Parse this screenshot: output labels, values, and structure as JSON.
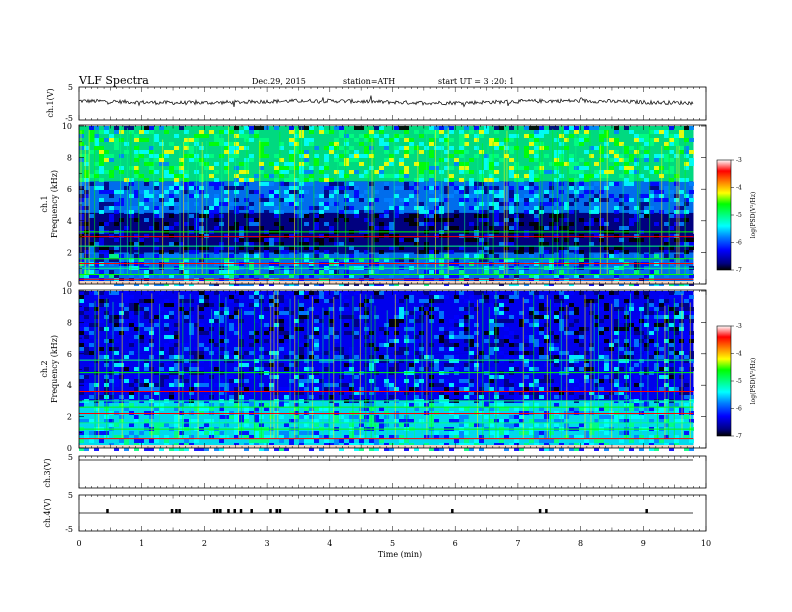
{
  "header": {
    "title": "VLF  Spectra",
    "date": "Dec.29, 2015",
    "station": "station=ATH",
    "start": "start  UT  =   3  :20: 1"
  },
  "colors": {
    "bg": "#ffffff",
    "axis": "#000000",
    "colormap": [
      "#000000",
      "#00007f",
      "#0000ff",
      "#0080ff",
      "#00ffff",
      "#00ff80",
      "#00ff00",
      "#ffff00",
      "#ff8000",
      "#ff0000",
      "#ffffff"
    ]
  },
  "chart_data": [
    {
      "type": "line",
      "panel": "ch1-waveform",
      "ylabel": "ch.1(V)",
      "ylim": [
        -5,
        5
      ],
      "yticks": [
        "5",
        "-5"
      ],
      "xlim": [
        0,
        10
      ],
      "baseline_level": 0.5,
      "trace": "noisy waveform near +0.5 V with periodic spikes, continuous across 0-9.8 min"
    },
    {
      "type": "heatmap",
      "panel": "ch1-spectrogram",
      "ylabel": "Frequency (kHz)",
      "channel_label": "ch.1",
      "ylim": [
        0,
        10
      ],
      "yticks": [
        "0",
        "2",
        "4",
        "6",
        "8",
        "10"
      ],
      "xlim": [
        0,
        9.8
      ],
      "colorbar": {
        "label": "log(PSD(V²/Hz)",
        "range": [
          -7,
          -3
        ],
        "ticks": [
          "-3",
          "-4",
          "-5",
          "-6",
          "-7"
        ]
      },
      "bands": [
        {
          "from": 0,
          "to": 2,
          "level": -5.8
        },
        {
          "from": 2,
          "to": 4.5,
          "level": -6.6
        },
        {
          "from": 4.5,
          "to": 6.5,
          "level": -6.0
        },
        {
          "from": 6.5,
          "to": 10,
          "level": -4.9
        }
      ],
      "lines_khz": [
        0.3,
        0.6,
        1.0,
        1.3,
        1.6,
        2.4,
        3.0,
        3.3
      ]
    },
    {
      "type": "heatmap",
      "panel": "ch2-spectrogram",
      "ylabel": "Frequency (kHz)",
      "channel_label": "ch.2",
      "ylim": [
        0,
        10
      ],
      "yticks": [
        "0",
        "2",
        "4",
        "6",
        "8",
        "10"
      ],
      "xlim": [
        0,
        9.8
      ],
      "colorbar": {
        "label": "log(PSD(V²/Hz)",
        "range": [
          -7,
          -3
        ],
        "ticks": [
          "-3",
          "-4",
          "-5",
          "-6",
          "-7"
        ]
      },
      "bands": [
        {
          "from": 0,
          "to": 3,
          "level": -5.6
        },
        {
          "from": 3,
          "to": 6,
          "level": -6.1
        },
        {
          "from": 6,
          "to": 10,
          "level": -6.3
        }
      ],
      "lines_khz": [
        0.6,
        1.2,
        1.6,
        2.2,
        2.6,
        3.0,
        3.6,
        4.8,
        5.6
      ]
    },
    {
      "type": "line",
      "panel": "ch3-waveform",
      "ylabel": "ch.3(V)",
      "ylim": [
        -5,
        5
      ],
      "yticks": [
        "5"
      ],
      "xlim": [
        0,
        10
      ],
      "baseline_level": 0,
      "trace": "flat line at 0 V"
    },
    {
      "type": "line",
      "panel": "ch4-waveform",
      "ylabel": "ch.4(V)",
      "ylim": [
        -5,
        5
      ],
      "yticks": [
        "5",
        "-5"
      ],
      "xlim": [
        0,
        10
      ],
      "baseline_level": 0,
      "trace": "flat line at 0 V with sparse pulses",
      "pulse_times_min": [
        0.45,
        1.48,
        1.55,
        1.6,
        2.15,
        2.2,
        2.25,
        2.38,
        2.48,
        2.58,
        2.75,
        3.05,
        3.15,
        3.2,
        3.95,
        4.1,
        4.3,
        4.55,
        4.75,
        4.95,
        5.95,
        7.35,
        7.45,
        9.05
      ]
    }
  ],
  "xaxis": {
    "label": "Time  (min)",
    "ticks": [
      "0",
      "1",
      "2",
      "3",
      "4",
      "5",
      "6",
      "7",
      "8",
      "9",
      "10"
    ],
    "xlim": [
      0,
      10
    ]
  }
}
